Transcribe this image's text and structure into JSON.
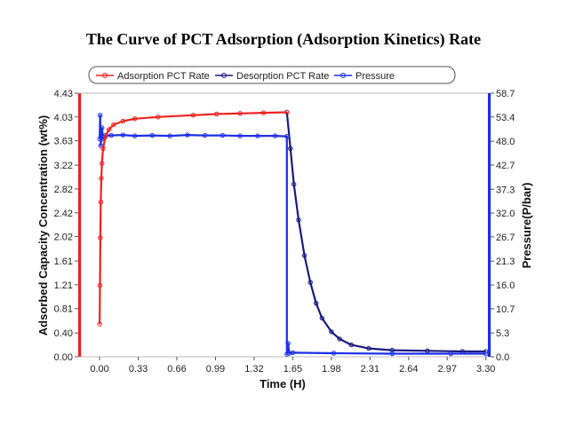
{
  "chart_data": {
    "type": "line",
    "title": "The Curve of PCT Adsorption (Adsorption Kinetics) Rate",
    "xlabel": "Time (H)",
    "ylabel": "Adsorbed Capacity Concentration (wt%)",
    "y2label": "Pressure(P/bar)",
    "xlim": [
      -0.16,
      3.34
    ],
    "ylim": [
      0.0,
      4.43
    ],
    "y2lim": [
      0.0,
      58.7
    ],
    "x_ticks": [
      "0.00",
      "0.33",
      "0.66",
      "0.99",
      "1.32",
      "1.65",
      "1.98",
      "2.31",
      "2.64",
      "2.97",
      "3.30"
    ],
    "y_ticks": [
      "0.00",
      "0.40",
      "0.81",
      "1.21",
      "1.61",
      "2.02",
      "2.42",
      "2.82",
      "3.22",
      "3.63",
      "4.03",
      "4.43"
    ],
    "y2_ticks": [
      "0.0",
      "5.3",
      "10.7",
      "16.0",
      "21.3",
      "26.7",
      "32.0",
      "37.3",
      "42.7",
      "48.0",
      "53.4",
      "58.7"
    ],
    "legend": [
      "Adsorption PCT Rate",
      "Desorption PCT Rate",
      "Pressure"
    ],
    "colors": {
      "adsorption": "#ee2222",
      "desorption": "#1a1a80",
      "pressure": "#1d2ee8"
    },
    "series": [
      {
        "name": "Adsorption PCT Rate",
        "axis": "left",
        "x": [
          0.0,
          0.003,
          0.006,
          0.01,
          0.015,
          0.02,
          0.03,
          0.05,
          0.08,
          0.12,
          0.2,
          0.3,
          0.5,
          0.8,
          1.0,
          1.2,
          1.4,
          1.6
        ],
        "y": [
          0.55,
          1.2,
          2.0,
          2.6,
          3.0,
          3.25,
          3.5,
          3.7,
          3.82,
          3.9,
          3.96,
          4.0,
          4.03,
          4.06,
          4.08,
          4.09,
          4.1,
          4.11
        ]
      },
      {
        "name": "Desorption PCT Rate",
        "axis": "left",
        "x": [
          1.6,
          1.63,
          1.66,
          1.7,
          1.75,
          1.8,
          1.85,
          1.9,
          1.98,
          2.05,
          2.15,
          2.3,
          2.5,
          2.8,
          3.1,
          3.3
        ],
        "y": [
          4.11,
          3.5,
          2.9,
          2.3,
          1.7,
          1.25,
          0.9,
          0.65,
          0.42,
          0.3,
          0.2,
          0.14,
          0.11,
          0.1,
          0.09,
          0.09
        ]
      },
      {
        "name": "Pressure",
        "axis": "right",
        "x": [
          0.0,
          0.005,
          0.01,
          0.02,
          0.03,
          0.05,
          0.1,
          0.2,
          0.3,
          0.45,
          0.6,
          0.75,
          0.9,
          1.05,
          1.2,
          1.35,
          1.5,
          1.6,
          1.6,
          1.61,
          1.62,
          1.65,
          2.0,
          2.5,
          3.0,
          3.3
        ],
        "y": [
          48.5,
          53.8,
          47.0,
          51.0,
          48.5,
          49.3,
          49.3,
          49.4,
          49.2,
          49.3,
          49.2,
          49.4,
          49.3,
          49.3,
          49.2,
          49.2,
          49.2,
          49.1,
          0.6,
          3.0,
          0.8,
          0.9,
          0.8,
          0.7,
          0.7,
          0.7
        ]
      }
    ]
  }
}
